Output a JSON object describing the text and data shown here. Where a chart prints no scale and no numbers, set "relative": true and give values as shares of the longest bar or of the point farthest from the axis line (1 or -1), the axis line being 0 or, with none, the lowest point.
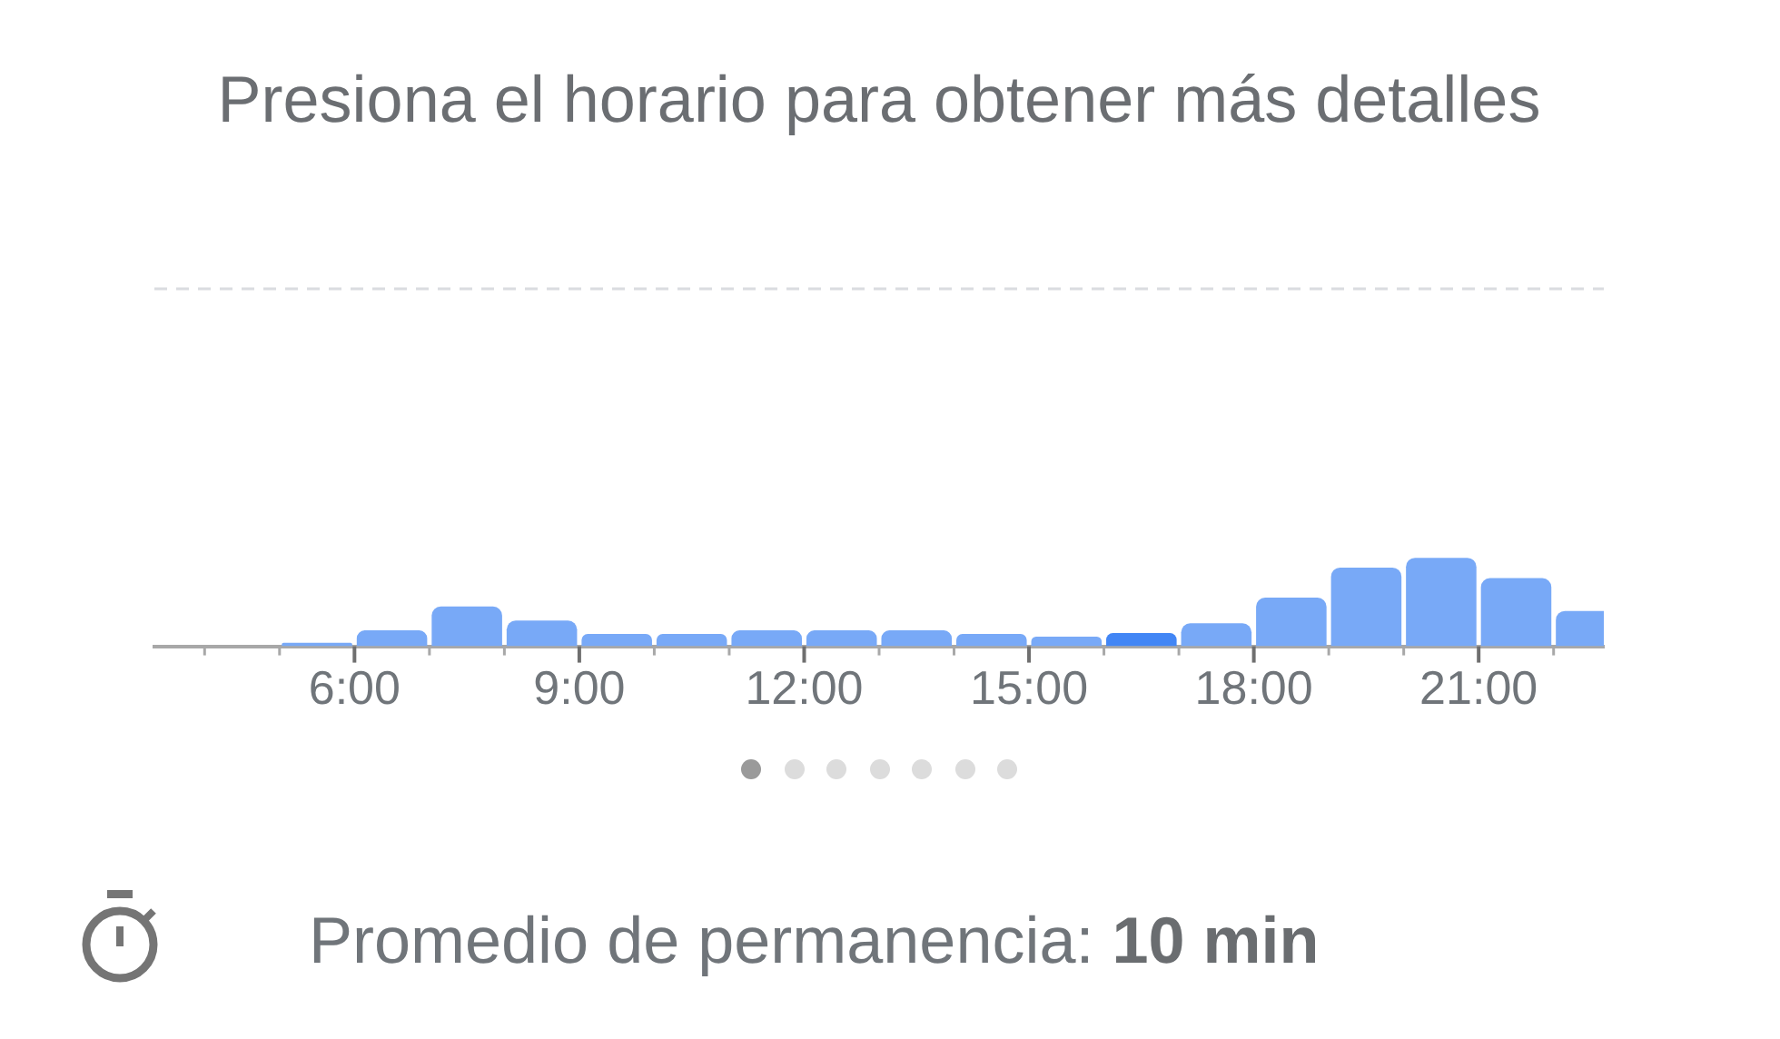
{
  "chart_data": {
    "type": "bar",
    "title": "Presiona el horario para obtener más detalles",
    "x": [
      5.5,
      6.5,
      7.5,
      8.5,
      9.5,
      10.5,
      11.5,
      12.5,
      13.5,
      14.5,
      15.5,
      16.5,
      17.5,
      18.5,
      19.5,
      20.5,
      21.5,
      22.5
    ],
    "values": [
      0.04,
      0.18,
      0.45,
      0.29,
      0.14,
      0.14,
      0.18,
      0.18,
      0.18,
      0.14,
      0.11,
      0.15,
      0.26,
      0.55,
      0.89,
      1,
      0.77,
      0.4
    ],
    "colors": [
      "#78a9f7",
      "#78a9f7",
      "#78a9f7",
      "#78a9f7",
      "#78a9f7",
      "#78a9f7",
      "#78a9f7",
      "#78a9f7",
      "#78a9f7",
      "#78a9f7",
      "#78a9f7",
      "#4286f5",
      "#78a9f7",
      "#78a9f7",
      "#78a9f7",
      "#78a9f7",
      "#78a9f7",
      "#78a9f7"
    ],
    "relative": true,
    "xlim": [
      3.33,
      22.67
    ],
    "xticks": [
      {
        "value": 4,
        "label": null
      },
      {
        "value": 5,
        "label": null
      },
      {
        "value": 6,
        "label": "6:00"
      },
      {
        "value": 7,
        "label": null
      },
      {
        "value": 8,
        "label": null
      },
      {
        "value": 9,
        "label": "9:00"
      },
      {
        "value": 10,
        "label": null
      },
      {
        "value": 11,
        "label": null
      },
      {
        "value": 12,
        "label": "12:00"
      },
      {
        "value": 13,
        "label": null
      },
      {
        "value": 14,
        "label": null
      },
      {
        "value": 15,
        "label": "15:00"
      },
      {
        "value": 16,
        "label": null
      },
      {
        "value": 17,
        "label": null
      },
      {
        "value": 18,
        "label": "18:00"
      },
      {
        "value": 19,
        "label": null
      },
      {
        "value": 20,
        "label": null
      },
      {
        "value": 21,
        "label": "21:00"
      },
      {
        "value": 22,
        "label": null
      }
    ],
    "ref_lines": [
      {
        "axis": "y",
        "value": 4.04,
        "line_style": "dashed",
        "color": "#dadce0"
      }
    ],
    "tick_labels": "x",
    "annotations": [
      "Promedio de permanencia:",
      "10 min"
    ]
  }
}
